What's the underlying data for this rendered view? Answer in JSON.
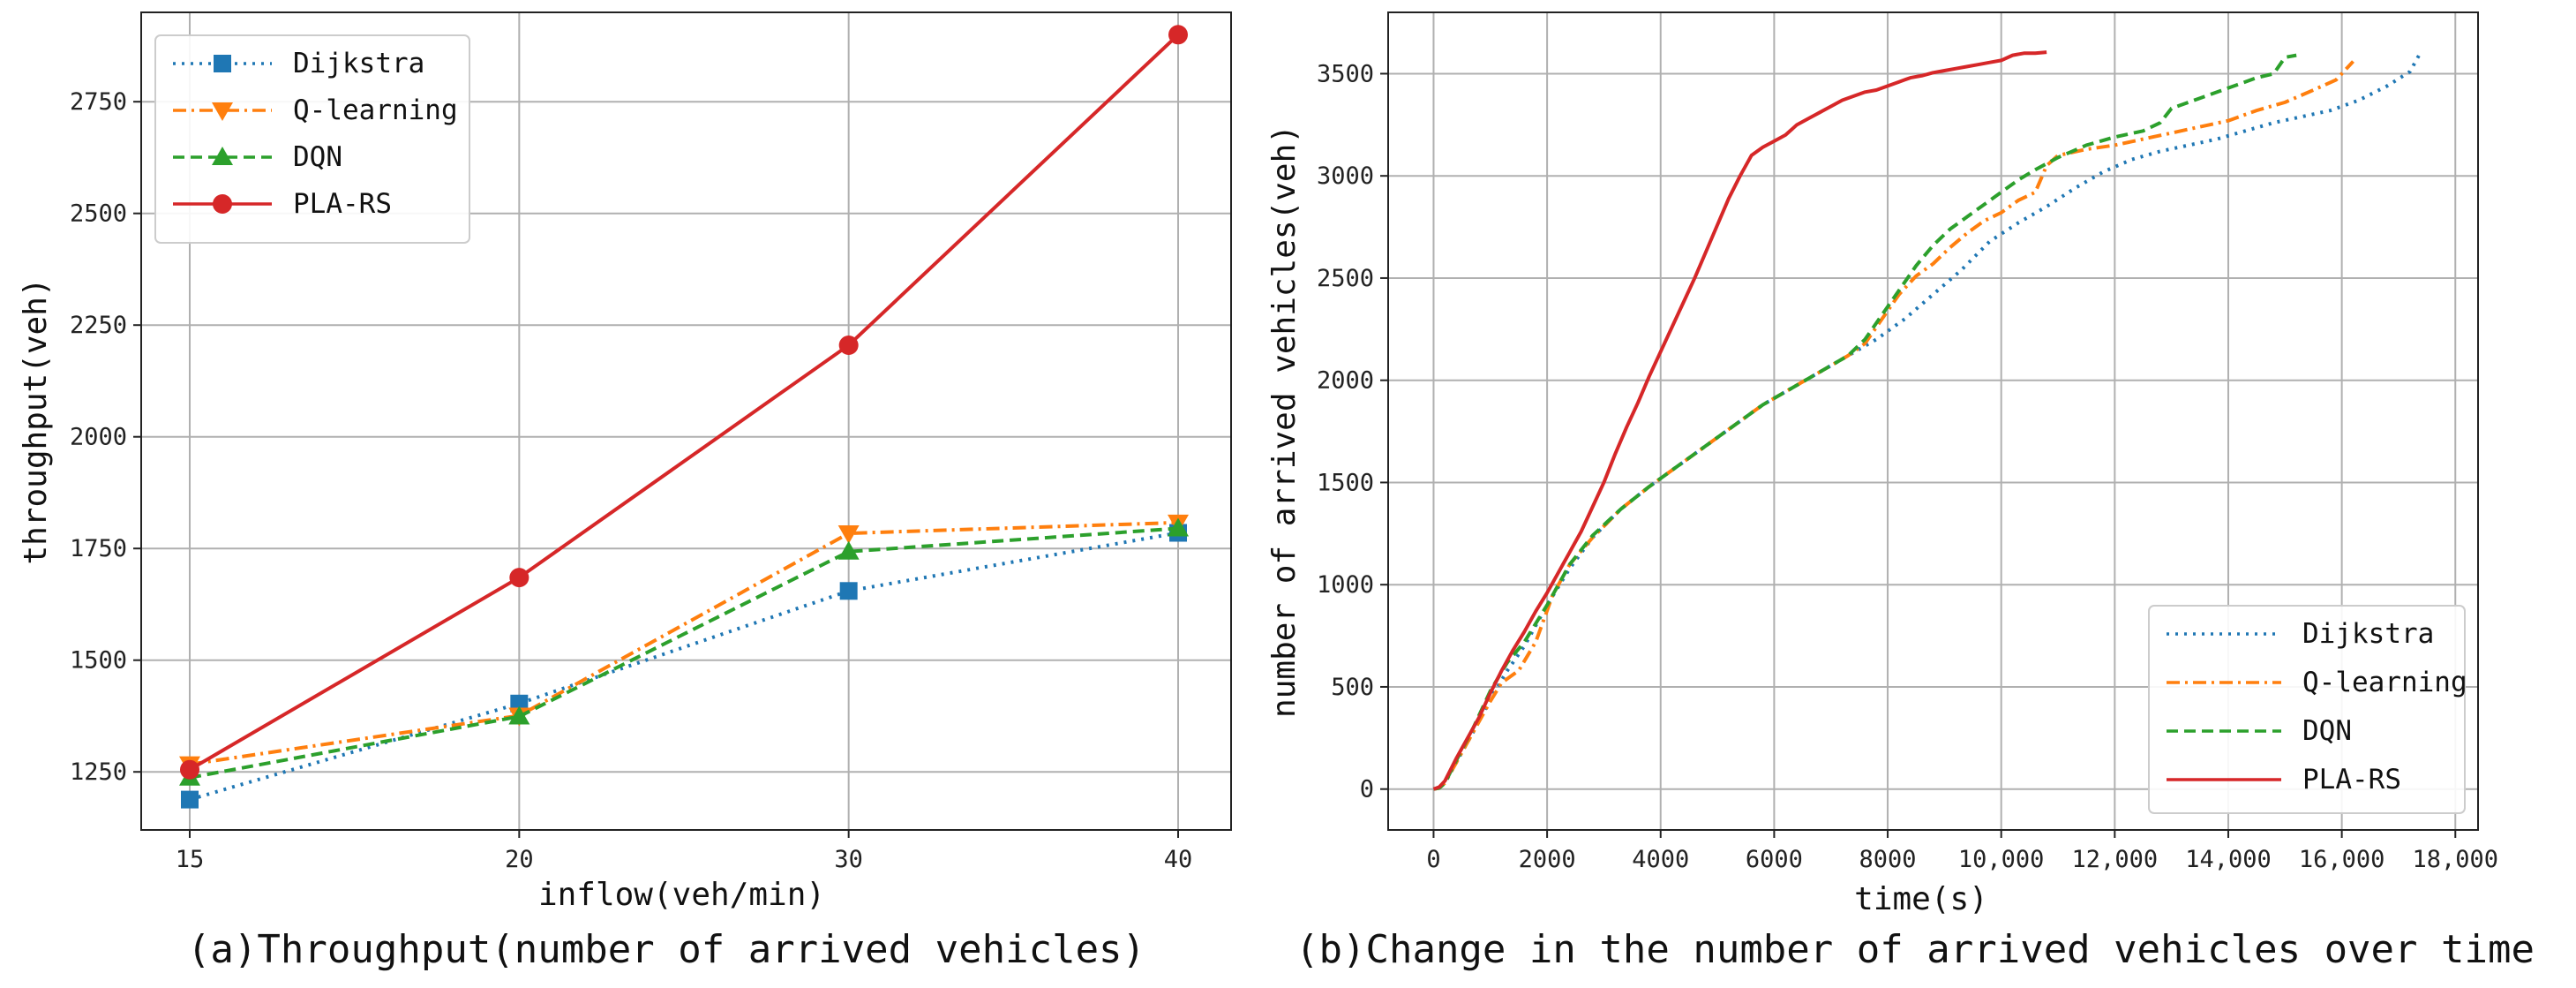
{
  "chart_data": [
    {
      "type": "line",
      "caption": "(a)Throughput(number of arrived vehicles)",
      "xlabel": "inflow(veh/min)",
      "ylabel": "throughput(veh)",
      "categories": [
        "15",
        "20",
        "30",
        "40"
      ],
      "ylim": [
        1120,
        2950
      ],
      "yticks": [
        1250,
        1500,
        1750,
        2000,
        2250,
        2500,
        2750
      ],
      "ytick_labels": [
        "1250",
        "1500",
        "1750",
        "2000",
        "2250",
        "2500",
        "2750"
      ],
      "grid": true,
      "legend_position": "upper-left",
      "series": [
        {
          "name": "Dijkstra",
          "color": "#1f77b4",
          "linestyle": "dotted",
          "marker": "square",
          "values": [
            1188,
            1403,
            1655,
            1785
          ]
        },
        {
          "name": "Q-learning",
          "color": "#ff7f0e",
          "linestyle": "dashdot",
          "marker": "triangle-down",
          "values": [
            1267,
            1376,
            1784,
            1808
          ]
        },
        {
          "name": "DQN",
          "color": "#2ca02c",
          "linestyle": "dashed",
          "marker": "triangle-up",
          "values": [
            1237,
            1374,
            1743,
            1795
          ]
        },
        {
          "name": "PLA-RS",
          "color": "#d62728",
          "linestyle": "solid",
          "marker": "circle",
          "values": [
            1255,
            1685,
            2205,
            2900
          ]
        }
      ]
    },
    {
      "type": "line",
      "caption": "(b)Change in the number of arrived vehicles over time",
      "xlabel": "time(s)",
      "ylabel": "number of arrived vehicles(veh)",
      "xlim": [
        -800,
        18400
      ],
      "ylim": [
        -200,
        3800
      ],
      "xticks": [
        0,
        2000,
        4000,
        6000,
        8000,
        10000,
        12000,
        14000,
        16000,
        18000
      ],
      "xtick_labels": [
        "0",
        "2000",
        "4000",
        "6000",
        "8000",
        "10,000",
        "12,000",
        "14,000",
        "16,000",
        "18,000"
      ],
      "yticks": [
        0,
        500,
        1000,
        1500,
        2000,
        2500,
        3000,
        3500
      ],
      "ytick_labels": [
        "0",
        "500",
        "1000",
        "1500",
        "2000",
        "2500",
        "3000",
        "3500"
      ],
      "grid": true,
      "legend_position": "lower-right",
      "series": [
        {
          "name": "Dijkstra",
          "color": "#1f77b4",
          "linestyle": "dotted",
          "x": [
            0,
            100,
            200,
            400,
            700,
            1000,
            1300,
            1600,
            2000,
            2400,
            2800,
            3300,
            3800,
            4300,
            4800,
            5300,
            5800,
            6300,
            6800,
            7300,
            7800,
            8300,
            8800,
            9300,
            9800,
            10300,
            10800,
            11300,
            11800,
            12300,
            12800,
            13300,
            13800,
            14300,
            14800,
            15300,
            15800,
            16300,
            16800,
            17200,
            17400
          ],
          "y": [
            0,
            5,
            30,
            130,
            280,
            440,
            580,
            700,
            900,
            1080,
            1230,
            1370,
            1480,
            1580,
            1680,
            1780,
            1880,
            1960,
            2040,
            2120,
            2200,
            2300,
            2420,
            2540,
            2680,
            2770,
            2850,
            2940,
            3020,
            3080,
            3120,
            3150,
            3180,
            3220,
            3260,
            3290,
            3320,
            3370,
            3440,
            3510,
            3610
          ]
        },
        {
          "name": "Q-learning",
          "color": "#ff7f0e",
          "linestyle": "dashdot",
          "x": [
            0,
            100,
            200,
            400,
            700,
            1000,
            1200,
            1500,
            1800,
            2100,
            2400,
            2800,
            3300,
            3800,
            4300,
            4800,
            5300,
            5800,
            6300,
            6800,
            7300,
            7600,
            7900,
            8200,
            8500,
            8800,
            9100,
            9400,
            9700,
            10000,
            10300,
            10600,
            10800,
            11000,
            11500,
            12000,
            12500,
            13000,
            13500,
            14000,
            14500,
            15000,
            15500,
            15900,
            16200
          ],
          "y": [
            0,
            5,
            30,
            130,
            280,
            430,
            520,
            580,
            720,
            950,
            1100,
            1230,
            1370,
            1480,
            1580,
            1680,
            1780,
            1880,
            1960,
            2040,
            2120,
            2180,
            2300,
            2420,
            2510,
            2570,
            2650,
            2720,
            2780,
            2820,
            2880,
            2920,
            3050,
            3100,
            3130,
            3150,
            3180,
            3210,
            3240,
            3270,
            3320,
            3360,
            3420,
            3470,
            3560
          ]
        },
        {
          "name": "DQN",
          "color": "#2ca02c",
          "linestyle": "dashed",
          "x": [
            0,
            100,
            200,
            400,
            700,
            1000,
            1300,
            1600,
            2000,
            2400,
            2800,
            3300,
            3800,
            4300,
            4800,
            5300,
            5800,
            6300,
            6800,
            7300,
            7600,
            7900,
            8200,
            8500,
            8800,
            9100,
            9400,
            9700,
            10000,
            10300,
            10600,
            11000,
            11500,
            12000,
            12500,
            12800,
            13000,
            13500,
            14000,
            14500,
            14800,
            15000,
            15200
          ],
          "y": [
            0,
            5,
            30,
            140,
            300,
            480,
            620,
            720,
            900,
            1100,
            1240,
            1370,
            1480,
            1580,
            1680,
            1780,
            1880,
            1960,
            2040,
            2120,
            2200,
            2320,
            2440,
            2560,
            2660,
            2740,
            2800,
            2860,
            2920,
            2980,
            3030,
            3090,
            3150,
            3190,
            3220,
            3260,
            3330,
            3380,
            3430,
            3480,
            3500,
            3580,
            3590
          ]
        },
        {
          "name": "PLA-RS",
          "color": "#d62728",
          "linestyle": "solid",
          "x": [
            0,
            100,
            200,
            400,
            600,
            800,
            1000,
            1200,
            1400,
            1600,
            1800,
            2000,
            2200,
            2400,
            2600,
            2800,
            3000,
            3200,
            3400,
            3600,
            3800,
            4000,
            4200,
            4400,
            4600,
            4800,
            5000,
            5200,
            5400,
            5600,
            5800,
            6000,
            6200,
            6400,
            6600,
            6800,
            7000,
            7200,
            7400,
            7600,
            7800,
            8000,
            8200,
            8400,
            8600,
            8800,
            9000,
            9200,
            9400,
            9600,
            9800,
            10000,
            10200,
            10400,
            10600,
            10800
          ],
          "y": [
            0,
            10,
            40,
            150,
            250,
            350,
            470,
            580,
            680,
            770,
            870,
            960,
            1060,
            1160,
            1260,
            1380,
            1500,
            1640,
            1770,
            1890,
            2020,
            2140,
            2260,
            2380,
            2500,
            2630,
            2760,
            2890,
            3000,
            3100,
            3140,
            3170,
            3200,
            3250,
            3280,
            3310,
            3340,
            3370,
            3390,
            3410,
            3420,
            3440,
            3460,
            3480,
            3490,
            3505,
            3515,
            3525,
            3535,
            3545,
            3555,
            3565,
            3590,
            3600,
            3600,
            3605
          ]
        }
      ]
    }
  ]
}
